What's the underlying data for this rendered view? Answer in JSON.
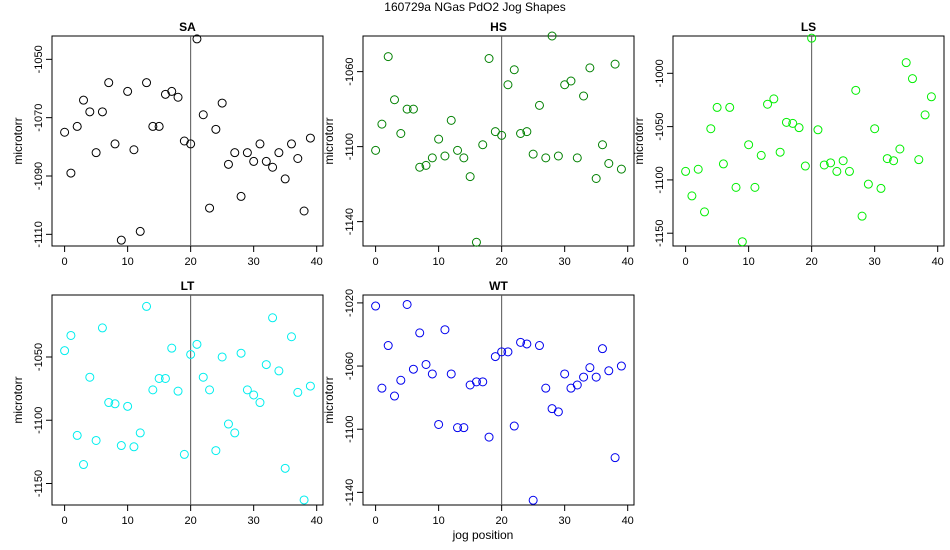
{
  "figure": {
    "title": "160729a   NGas PdO2 Jog Shapes",
    "xlabel": "jog position"
  },
  "chart_data": [
    {
      "type": "scatter",
      "title": "SA",
      "ylabel": "microtorr",
      "color": "#000000",
      "xlim": [
        -2,
        41
      ],
      "xticks": [
        0,
        10,
        20,
        30,
        40
      ],
      "ylim": [
        -1114,
        -1042
      ],
      "yticks": [
        -1050,
        -1070,
        -1090,
        -1110
      ],
      "vline": 20,
      "x": [
        0,
        1,
        2,
        3,
        4,
        5,
        6,
        7,
        8,
        9,
        10,
        11,
        12,
        13,
        14,
        15,
        16,
        17,
        18,
        19,
        20,
        21,
        22,
        23,
        24,
        25,
        26,
        27,
        28,
        29,
        30,
        31,
        32,
        33,
        34,
        35,
        36,
        37,
        38,
        39
      ],
      "y": [
        -1075,
        -1089,
        -1073,
        -1064,
        -1068,
        -1082,
        -1068,
        -1058,
        -1079,
        -1112,
        -1061,
        -1081,
        -1109,
        -1058,
        -1073,
        -1073,
        -1062,
        -1061,
        -1063,
        -1078,
        -1079,
        -1043,
        -1069,
        -1101,
        -1074,
        -1065,
        -1086,
        -1082,
        -1097,
        -1082,
        -1085,
        -1079,
        -1085,
        -1087,
        -1082,
        -1091,
        -1079,
        -1084,
        -1102,
        -1077
      ]
    },
    {
      "type": "scatter",
      "title": "HS",
      "ylabel": "microtorr",
      "color": "#008000",
      "xlim": [
        -2,
        41
      ],
      "xticks": [
        0,
        10,
        20,
        30,
        40
      ],
      "ylim": [
        -1153,
        -1041
      ],
      "yticks": [
        -1060,
        -1100,
        -1140
      ],
      "vline": 20,
      "x": [
        0,
        1,
        2,
        3,
        4,
        5,
        6,
        7,
        8,
        9,
        10,
        11,
        12,
        13,
        14,
        15,
        16,
        17,
        18,
        19,
        20,
        21,
        22,
        23,
        24,
        25,
        26,
        27,
        28,
        29,
        30,
        31,
        32,
        33,
        34,
        35,
        36,
        37,
        38,
        39
      ],
      "y": [
        -1102,
        -1088,
        -1052,
        -1075,
        -1093,
        -1080,
        -1080,
        -1111,
        -1110,
        -1106,
        -1096,
        -1105,
        -1086,
        -1102,
        -1106,
        -1116,
        -1151,
        -1099,
        -1053,
        -1092,
        -1094,
        -1067,
        -1059,
        -1093,
        -1092,
        -1104,
        -1078,
        -1106,
        -1041,
        -1105,
        -1067,
        -1065,
        -1106,
        -1073,
        -1058,
        -1117,
        -1099,
        -1109,
        -1056,
        -1112
      ]
    },
    {
      "type": "scatter",
      "title": "LS",
      "ylabel": "microtorr",
      "color": "#00ee00",
      "xlim": [
        -2,
        41
      ],
      "xticks": [
        0,
        10,
        20,
        30,
        40
      ],
      "ylim": [
        -1162,
        -965
      ],
      "yticks": [
        -1000,
        -1050,
        -1100,
        -1150
      ],
      "vline": 20,
      "x": [
        0,
        1,
        2,
        3,
        4,
        5,
        6,
        7,
        8,
        9,
        10,
        11,
        12,
        13,
        14,
        15,
        16,
        17,
        18,
        19,
        20,
        21,
        22,
        23,
        24,
        25,
        26,
        27,
        28,
        29,
        30,
        31,
        32,
        33,
        34,
        35,
        36,
        37,
        38,
        39
      ],
      "y": [
        -1092,
        -1115,
        -1090,
        -1130,
        -1052,
        -1032,
        -1085,
        -1032,
        -1107,
        -1158,
        -1067,
        -1107,
        -1077,
        -1029,
        -1024,
        -1074,
        -1046,
        -1047,
        -1051,
        -1087,
        -967,
        -1053,
        -1086,
        -1084,
        -1092,
        -1082,
        -1092,
        -1016,
        -1134,
        -1104,
        -1052,
        -1108,
        -1080,
        -1082,
        -1071,
        -990,
        -1005,
        -1081,
        -1039,
        -1022
      ]
    },
    {
      "type": "scatter",
      "title": "LT",
      "ylabel": "microtorr",
      "color": "#00eeee",
      "xlim": [
        -2,
        41
      ],
      "xticks": [
        0,
        10,
        20,
        30,
        40
      ],
      "ylim": [
        -1167,
        -1001
      ],
      "yticks": [
        -1050,
        -1100,
        -1150
      ],
      "vline": 20,
      "x": [
        0,
        1,
        2,
        3,
        4,
        5,
        6,
        7,
        8,
        9,
        10,
        11,
        12,
        13,
        14,
        15,
        16,
        17,
        18,
        19,
        20,
        21,
        22,
        23,
        24,
        25,
        26,
        27,
        28,
        29,
        30,
        31,
        32,
        33,
        34,
        35,
        36,
        37,
        38,
        39
      ],
      "y": [
        -1045,
        -1033,
        -1112,
        -1135,
        -1066,
        -1116,
        -1027,
        -1086,
        -1087,
        -1120,
        -1089,
        -1121,
        -1110,
        -1010,
        -1076,
        -1067,
        -1067,
        -1043,
        -1077,
        -1127,
        -1048,
        -1040,
        -1066,
        -1076,
        -1124,
        -1050,
        -1103,
        -1110,
        -1047,
        -1076,
        -1080,
        -1086,
        -1056,
        -1019,
        -1061,
        -1138,
        -1034,
        -1078,
        -1163,
        -1073
      ]
    },
    {
      "type": "scatter",
      "title": "WT",
      "ylabel": "microtorr",
      "color": "#0000ee",
      "xlim": [
        -2,
        41
      ],
      "xticks": [
        0,
        10,
        20,
        30,
        40
      ],
      "ylim": [
        -1148,
        -1015
      ],
      "yticks": [
        -1020,
        -1060,
        -1100,
        -1140
      ],
      "vline": 20,
      "x": [
        0,
        1,
        2,
        3,
        4,
        5,
        6,
        7,
        8,
        9,
        10,
        11,
        12,
        13,
        14,
        15,
        16,
        17,
        18,
        19,
        20,
        21,
        22,
        23,
        24,
        25,
        26,
        27,
        28,
        29,
        30,
        31,
        32,
        33,
        34,
        35,
        36,
        37,
        38,
        39
      ],
      "y": [
        -1022,
        -1074,
        -1047,
        -1079,
        -1069,
        -1021,
        -1062,
        -1039,
        -1059,
        -1065,
        -1097,
        -1037,
        -1065,
        -1099,
        -1099,
        -1072,
        -1070,
        -1070,
        -1105,
        -1054,
        -1051,
        -1051,
        -1098,
        -1045,
        -1046,
        -1145,
        -1047,
        -1074,
        -1087,
        -1089,
        -1065,
        -1074,
        -1072,
        -1067,
        -1061,
        -1067,
        -1049,
        -1063,
        -1118,
        -1060
      ]
    }
  ]
}
